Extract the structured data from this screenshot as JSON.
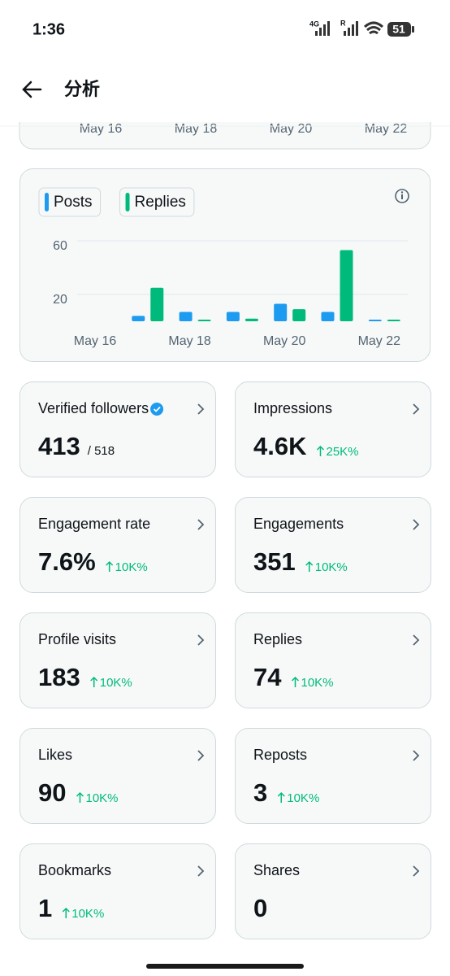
{
  "status_bar": {
    "time": "1:36",
    "network": "4G",
    "roaming": "R",
    "battery": "51"
  },
  "header": {
    "title": "分析"
  },
  "top_card": {
    "x_labels": [
      "May 16",
      "May 18",
      "May 20",
      "May 22"
    ]
  },
  "chart_data": {
    "type": "bar",
    "categories": [
      "May 16",
      null,
      "May 18",
      null,
      "May 20",
      null,
      "May 22"
    ],
    "series": [
      {
        "name": "Posts",
        "color": "#1d9bf0",
        "values": [
          null,
          4,
          7,
          7,
          13,
          7,
          0
        ]
      },
      {
        "name": "Replies",
        "color": "#00ba7c",
        "values": [
          null,
          25,
          0,
          2,
          9,
          53,
          0
        ]
      }
    ],
    "ylim": [
      0,
      60
    ],
    "yticks": [
      20,
      60
    ],
    "grid": true
  },
  "stats": [
    {
      "label": "Verified followers",
      "value": "413",
      "total": "/ 518"
    },
    {
      "label": "Impressions",
      "value": "4.6K",
      "change": "25K%"
    },
    {
      "label": "Engagement rate",
      "value": "7.6%",
      "change": "10K%"
    },
    {
      "label": "Engagements",
      "value": "351",
      "change": "10K%"
    },
    {
      "label": "Profile visits",
      "value": "183",
      "change": "10K%"
    },
    {
      "label": "Replies",
      "value": "74",
      "change": "10K%"
    },
    {
      "label": "Likes",
      "value": "90",
      "change": "10K%"
    },
    {
      "label": "Reposts",
      "value": "3",
      "change": "10K%"
    },
    {
      "label": "Bookmarks",
      "value": "1",
      "change": "10K%"
    },
    {
      "label": "Shares",
      "value": "0"
    }
  ]
}
